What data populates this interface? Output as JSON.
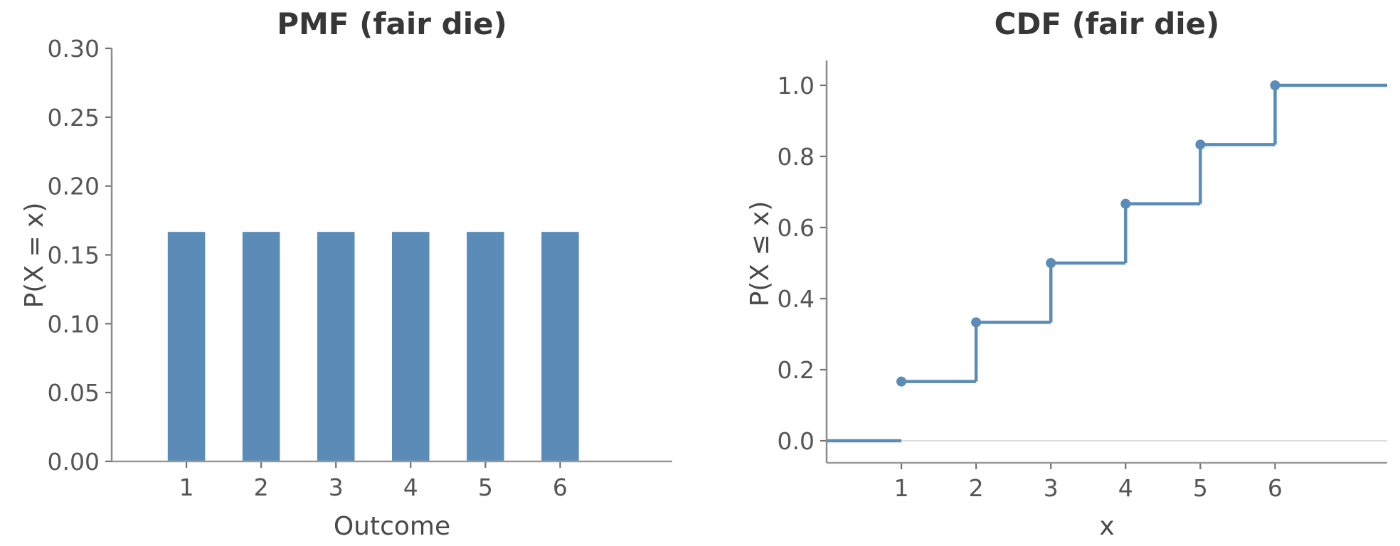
{
  "figure": {
    "background": "#ffffff",
    "accent_blue": "#5b8cb8",
    "spine_color": "#8c8c8c",
    "tick_color": "#707070",
    "zero_line_color": "#dcdcdc"
  },
  "chart_data": [
    {
      "type": "bar",
      "title": "PMF (fair die)",
      "xlabel": "Outcome",
      "ylabel": "P(X = x)",
      "categories": [
        1,
        2,
        3,
        4,
        5,
        6
      ],
      "values": [
        0.1667,
        0.1667,
        0.1667,
        0.1667,
        0.1667,
        0.1667
      ],
      "bar_width": 0.5,
      "color": "#5b8cb8",
      "xlim": [
        0,
        7.5
      ],
      "ylim": [
        0,
        0.3
      ],
      "xticks": [
        1,
        2,
        3,
        4,
        5,
        6
      ],
      "xtick_labels": [
        "1",
        "2",
        "3",
        "4",
        "5",
        "6"
      ],
      "yticks": [
        0.0,
        0.05,
        0.1,
        0.15,
        0.2,
        0.25,
        0.3
      ],
      "ytick_labels": [
        "0.00",
        "0.05",
        "0.10",
        "0.15",
        "0.20",
        "0.25",
        "0.30"
      ],
      "grid": false,
      "legend": null
    },
    {
      "type": "step",
      "title": "CDF (fair die)",
      "xlabel": "x",
      "ylabel": "P(X ≤ x)",
      "x": [
        1,
        2,
        3,
        4,
        5,
        6
      ],
      "y": [
        0.1667,
        0.3333,
        0.5,
        0.6667,
        0.8333,
        1.0
      ],
      "step_where": "post",
      "marker": "circle",
      "pre_segment": {
        "x_from": 0,
        "x_to": 1,
        "y": 0
      },
      "final_segment": {
        "x_from": 6,
        "x_to": 7.5,
        "y": 1.0
      },
      "zero_baseline": {
        "y": 0
      },
      "risers_at_x": [
        2,
        3,
        4,
        5,
        6
      ],
      "color": "#5b8cb8",
      "xlim": [
        0,
        7.5
      ],
      "ylim": [
        -0.066,
        1.068
      ],
      "xticks": [
        1,
        2,
        3,
        4,
        5,
        6
      ],
      "xtick_labels": [
        "1",
        "2",
        "3",
        "4",
        "5",
        "6"
      ],
      "yticks": [
        0.0,
        0.2,
        0.4,
        0.6,
        0.8,
        1.0
      ],
      "ytick_labels": [
        "0.0",
        "0.2",
        "0.4",
        "0.6",
        "0.8",
        "1.0"
      ],
      "grid": false,
      "legend": null
    }
  ]
}
